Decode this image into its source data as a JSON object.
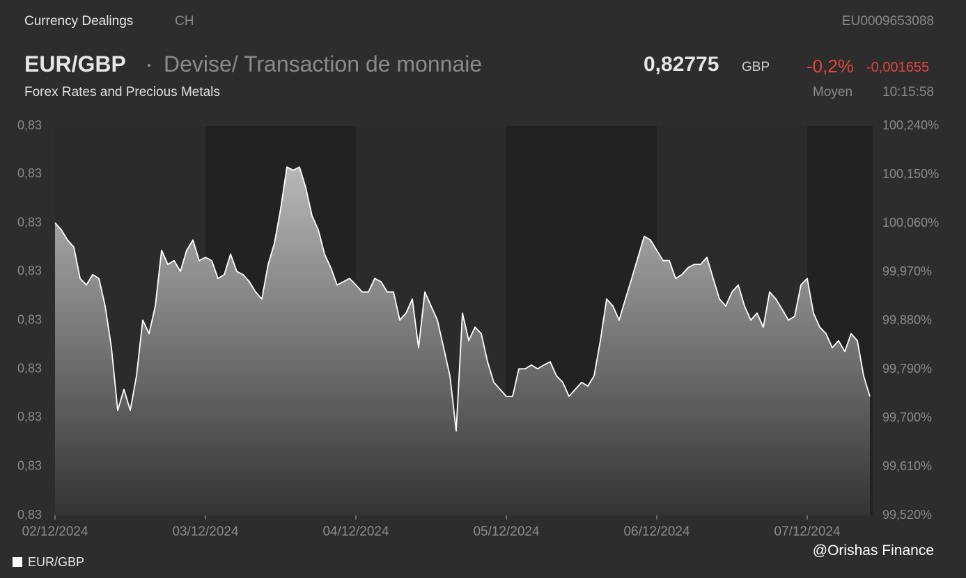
{
  "header": {
    "title": "Currency Dealings",
    "region": "CH",
    "isin": "EU0009653088",
    "symbol": "EUR/GBP",
    "description": "Devise/ Transaction de monnaie",
    "price": "0,82775",
    "currency": "GBP",
    "change_pct": "-0,2%",
    "change_abs": "-0,001655",
    "category": "Forex Rates and Precious Metals",
    "price_type": "Moyen",
    "time": "10:15:58"
  },
  "watermark": "@Orishas Finance",
  "chart_data": {
    "type": "area",
    "categories": [
      "02/12/2024",
      null,
      null,
      null,
      null,
      null,
      null,
      null,
      null,
      null,
      null,
      null,
      null,
      null,
      null,
      null,
      null,
      null,
      null,
      null,
      null,
      null,
      null,
      null,
      "03/12/2024",
      null,
      null,
      null,
      null,
      null,
      null,
      null,
      null,
      null,
      null,
      null,
      null,
      null,
      null,
      null,
      null,
      null,
      null,
      null,
      null,
      null,
      null,
      null,
      "04/12/2024",
      null,
      null,
      null,
      null,
      null,
      null,
      null,
      null,
      null,
      null,
      null,
      null,
      null,
      null,
      null,
      null,
      null,
      null,
      null,
      null,
      null,
      null,
      null,
      "05/12/2024",
      null,
      null,
      null,
      null,
      null,
      null,
      null,
      null,
      null,
      null,
      null,
      null,
      null,
      null,
      null,
      null,
      null,
      null,
      null,
      null,
      null,
      null,
      null,
      "06/12/2024",
      null,
      null,
      null,
      null,
      null,
      null,
      null,
      null,
      null,
      null,
      null,
      null,
      null,
      null,
      null,
      null,
      null,
      null,
      null,
      null,
      null,
      null,
      null,
      "07/12/2024",
      null,
      null,
      null,
      null,
      null,
      null,
      null,
      null,
      null,
      null
    ],
    "series": [
      {
        "name": "EUR/GBP",
        "color": "#ffffff",
        "axis": "y2",
        "values": [
          100.061,
          100.048,
          100.029,
          100.016,
          99.958,
          99.946,
          99.965,
          99.958,
          99.907,
          99.83,
          99.714,
          99.753,
          99.714,
          99.778,
          99.881,
          99.856,
          99.907,
          100.01,
          99.984,
          99.991,
          99.971,
          100.01,
          100.029,
          99.991,
          99.997,
          99.991,
          99.958,
          99.965,
          100.003,
          99.971,
          99.965,
          99.952,
          99.933,
          99.92,
          99.984,
          100.023,
          100.087,
          100.164,
          100.158,
          100.164,
          100.126,
          100.074,
          100.048,
          100.003,
          99.978,
          99.946,
          99.952,
          99.958,
          99.946,
          99.933,
          99.933,
          99.958,
          99.952,
          99.933,
          99.933,
          99.881,
          99.894,
          99.92,
          99.83,
          99.933,
          99.907,
          99.881,
          99.83,
          99.778,
          99.676,
          99.894,
          99.843,
          99.868,
          99.856,
          99.804,
          99.766,
          99.753,
          99.74,
          99.74,
          99.791,
          99.791,
          99.798,
          99.791,
          99.798,
          99.804,
          99.778,
          99.766,
          99.74,
          99.753,
          99.766,
          99.759,
          99.778,
          99.843,
          99.92,
          99.907,
          99.881,
          99.92,
          99.958,
          99.997,
          100.036,
          100.029,
          100.01,
          99.991,
          99.991,
          99.958,
          99.965,
          99.978,
          99.984,
          99.984,
          99.997,
          99.958,
          99.92,
          99.907,
          99.933,
          99.946,
          99.907,
          99.881,
          99.894,
          99.868,
          99.933,
          99.92,
          99.901,
          99.881,
          99.888,
          99.946,
          99.958,
          99.894,
          99.868,
          99.856,
          99.83,
          99.843,
          99.823,
          99.856,
          99.843,
          99.778,
          99.74
        ]
      }
    ],
    "ylim": [
      0.82584,
      0.83181
    ],
    "yticks": [
      {
        "value": 0.82584,
        "label": "0,83"
      },
      {
        "value": 0.82659,
        "label": "0,83"
      },
      {
        "value": 0.82734,
        "label": "0,83"
      },
      {
        "value": 0.82808,
        "label": "0,83"
      },
      {
        "value": 0.82883,
        "label": "0,83"
      },
      {
        "value": 0.82958,
        "label": "0,83"
      },
      {
        "value": 0.83032,
        "label": "0,83"
      },
      {
        "value": 0.83107,
        "label": "0,83"
      },
      {
        "value": 0.83181,
        "label": "0,83"
      }
    ],
    "y2lim": [
      99.52,
      100.24
    ],
    "y2ticks": [
      {
        "value": 99.52,
        "label": "99,520%"
      },
      {
        "value": 99.61,
        "label": "99,610%"
      },
      {
        "value": 99.7,
        "label": "99,700%"
      },
      {
        "value": 99.79,
        "label": "99,790%"
      },
      {
        "value": 99.88,
        "label": "99,880%"
      },
      {
        "value": 99.97,
        "label": "99,970%"
      },
      {
        "value": 100.06,
        "label": "100,060%"
      },
      {
        "value": 100.15,
        "label": "100,150%"
      },
      {
        "value": 100.24,
        "label": "100,240%"
      }
    ],
    "legend": "bottom-left"
  }
}
